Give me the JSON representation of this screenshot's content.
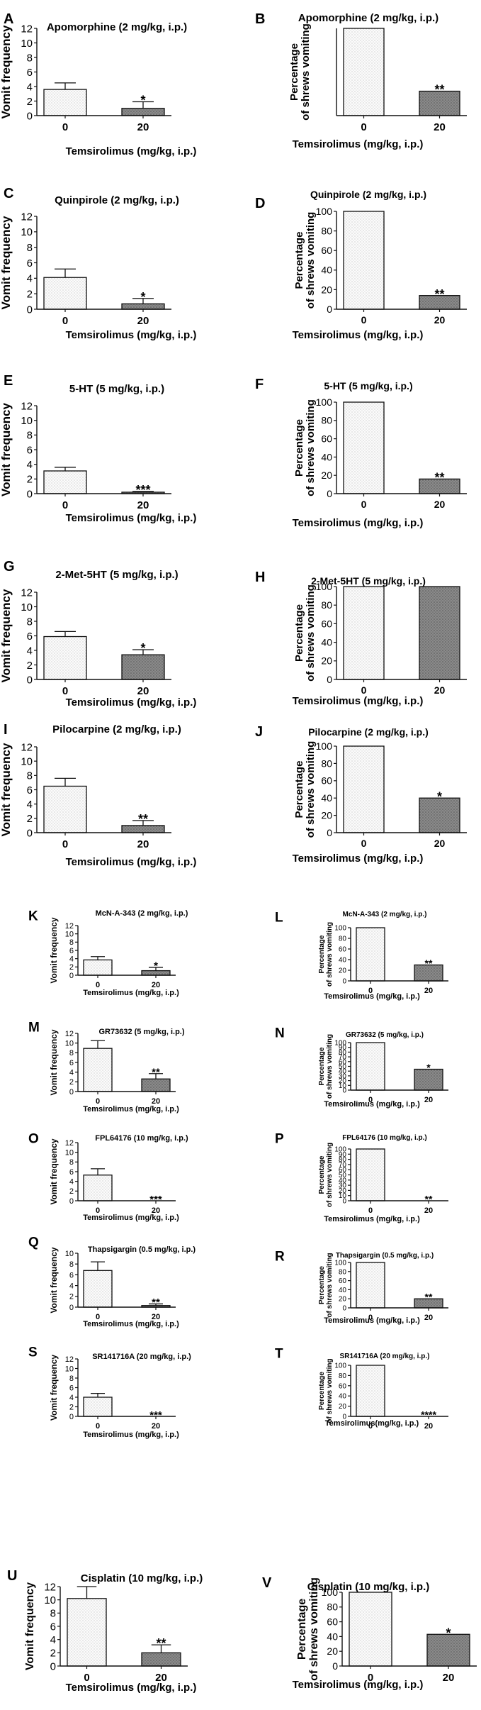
{
  "figure": {
    "xlabel": "Temsirolimus (mg/kg, i.p.)",
    "xlabel_squeezed": "Temsirolimus(mg/kg, i.p.)",
    "categories": [
      "0",
      "20"
    ],
    "ylabel_frequency": "Vomit frequency",
    "ylabel_percent_line1": "Percentage",
    "ylabel_percent_line2": "of shrews vomiting"
  },
  "chart_data": [
    {
      "panel": "A",
      "type": "bar",
      "title": "Apomorphine (2 mg/kg, i.p.)",
      "ylabel": "Vomit frequency",
      "xlabel": "Temsirolimus (mg/kg, i.p.)",
      "categories": [
        "0",
        "20"
      ],
      "values": [
        3.6,
        1.0
      ],
      "errors": [
        0.9,
        0.9
      ],
      "ylim": [
        0,
        12
      ],
      "yticks": [
        0,
        2,
        4,
        6,
        8,
        10,
        12
      ],
      "significance": [
        "",
        "*"
      ]
    },
    {
      "panel": "B",
      "type": "bar",
      "title": "Apomorphine (2 mg/kg, i.p.)",
      "ylabel": "Percentage of shrews vomiting",
      "xlabel": "Temsirolimus (mg/kg, i.p.)",
      "categories": [
        "0",
        "20"
      ],
      "values": [
        100,
        28
      ],
      "errors": [
        0,
        0
      ],
      "ylim": [
        0,
        100
      ],
      "yticks": [],
      "significance": [
        "",
        "**"
      ]
    },
    {
      "panel": "C",
      "type": "bar",
      "title": "Quinpirole (2 mg/kg, i.p.)",
      "ylabel": "Vomit frequency",
      "xlabel": "Temsirolimus (mg/kg, i.p.)",
      "categories": [
        "0",
        "20"
      ],
      "values": [
        4.1,
        0.7
      ],
      "errors": [
        1.1,
        0.7
      ],
      "ylim": [
        0,
        12
      ],
      "yticks": [
        0,
        2,
        4,
        6,
        8,
        10,
        12
      ],
      "significance": [
        "",
        "*"
      ]
    },
    {
      "panel": "D",
      "type": "bar",
      "title": "Quinpirole (2 mg/kg, i.p.)",
      "ylabel": "Percentage of shrews vomiting",
      "xlabel": "Temsirolimus (mg/kg, i.p.)",
      "categories": [
        "0",
        "20"
      ],
      "values": [
        100,
        14
      ],
      "errors": [
        0,
        0
      ],
      "ylim": [
        0,
        100
      ],
      "yticks": [
        0,
        20,
        40,
        60,
        80,
        100
      ],
      "significance": [
        "",
        "**"
      ]
    },
    {
      "panel": "E",
      "type": "bar",
      "title": "5-HT (5 mg/kg, i.p.)",
      "ylabel": "Vomit frequency",
      "xlabel": "Temsirolimus (mg/kg, i.p.)",
      "categories": [
        "0",
        "20"
      ],
      "values": [
        3.1,
        0.2
      ],
      "errors": [
        0.5,
        0.1
      ],
      "ylim": [
        0,
        12
      ],
      "yticks": [
        0,
        2,
        4,
        6,
        8,
        10,
        12
      ],
      "significance": [
        "",
        "***"
      ]
    },
    {
      "panel": "F",
      "type": "bar",
      "title": "5-HT (5 mg/kg, i.p.)",
      "ylabel": "Percentage of shrews vomiting",
      "xlabel": "Temsirolimus (mg/kg, i.p.)",
      "categories": [
        "0",
        "20"
      ],
      "values": [
        100,
        16
      ],
      "errors": [
        0,
        0
      ],
      "ylim": [
        0,
        100
      ],
      "yticks": [
        0,
        20,
        40,
        60,
        80,
        100
      ],
      "significance": [
        "",
        "**"
      ]
    },
    {
      "panel": "G",
      "type": "bar",
      "title": "2-Met-5HT (5 mg/kg, i.p.)",
      "ylabel": "Vomit frequency",
      "xlabel": "Temsirolimus (mg/kg, i.p.)",
      "categories": [
        "0",
        "20"
      ],
      "values": [
        5.9,
        3.4
      ],
      "errors": [
        0.7,
        0.7
      ],
      "ylim": [
        0,
        12
      ],
      "yticks": [
        0,
        2,
        4,
        6,
        8,
        10,
        12
      ],
      "significance": [
        "",
        "*"
      ]
    },
    {
      "panel": "H",
      "type": "bar",
      "title": "2-Met-5HT (5 mg/kg, i.p.)",
      "ylabel": "Percentage of shrews vomiting",
      "xlabel": "Temsirolimus (mg/kg, i.p.)",
      "categories": [
        "0",
        "20"
      ],
      "values": [
        100,
        100
      ],
      "errors": [
        0,
        0
      ],
      "ylim": [
        0,
        100
      ],
      "yticks": [
        0,
        20,
        40,
        60,
        80,
        100
      ],
      "significance": [
        "",
        ""
      ]
    },
    {
      "panel": "I",
      "type": "bar",
      "title": "Pilocarpine (2 mg/kg, i.p.)",
      "ylabel": "Vomit frequency",
      "xlabel": "Temsirolimus (mg/kg, i.p.)",
      "categories": [
        "0",
        "20"
      ],
      "values": [
        6.5,
        1.0
      ],
      "errors": [
        1.1,
        0.7
      ],
      "ylim": [
        0,
        12
      ],
      "yticks": [
        0,
        2,
        4,
        6,
        8,
        10,
        12
      ],
      "significance": [
        "",
        "**"
      ]
    },
    {
      "panel": "J",
      "type": "bar",
      "title": "Pilocarpine (2 mg/kg, i.p.)",
      "ylabel": "Percentage of shrews vomiting",
      "xlabel": "Temsirolimus (mg/kg, i.p.)",
      "categories": [
        "0",
        "20"
      ],
      "values": [
        100,
        40
      ],
      "errors": [
        0,
        0
      ],
      "ylim": [
        0,
        100
      ],
      "yticks": [
        0,
        20,
        40,
        60,
        80,
        100
      ],
      "significance": [
        "",
        "*"
      ]
    },
    {
      "panel": "K",
      "type": "bar",
      "title": "McN-A-343 (2 mg/kg, i.p.)",
      "ylabel": "Vomit frequency",
      "xlabel": "Temsirolimus (mg/kg, i.p.)",
      "categories": [
        "0",
        "20"
      ],
      "values": [
        3.7,
        1.1
      ],
      "errors": [
        0.8,
        0.8
      ],
      "ylim": [
        0,
        12
      ],
      "yticks": [
        0,
        2,
        4,
        6,
        8,
        10,
        12
      ],
      "significance": [
        "",
        "*"
      ]
    },
    {
      "panel": "L",
      "type": "bar",
      "title": "McN-A-343 (2 mg/kg, i.p.)",
      "ylabel": "Percentage of shrews vomiting",
      "xlabel": "Temsirolimus (mg/kg, i.p.)",
      "categories": [
        "0",
        "20"
      ],
      "values": [
        100,
        30
      ],
      "errors": [
        0,
        0
      ],
      "ylim": [
        0,
        100
      ],
      "yticks": [
        0,
        20,
        40,
        60,
        80,
        100
      ],
      "significance": [
        "",
        "**"
      ]
    },
    {
      "panel": "M",
      "type": "bar",
      "title": "GR73632 (5 mg/kg, i.p.)",
      "ylabel": "Vomit frequency",
      "xlabel": "Temsirolimus (mg/kg, i.p.)",
      "categories": [
        "0",
        "20"
      ],
      "values": [
        8.9,
        2.6
      ],
      "errors": [
        1.6,
        1.1
      ],
      "ylim": [
        0,
        12
      ],
      "yticks": [
        0,
        2,
        4,
        6,
        8,
        10,
        12
      ],
      "significance": [
        "",
        "**"
      ]
    },
    {
      "panel": "N",
      "type": "bar",
      "title": "GR73632 (5 mg/kg, i.p.)",
      "ylabel": "Percentage of shrews vomiting",
      "xlabel": "Temsirolimus (mg/kg, i.p.)",
      "categories": [
        "0",
        "20"
      ],
      "values": [
        100,
        44
      ],
      "errors": [
        0,
        0
      ],
      "ylim": [
        0,
        100
      ],
      "yticks": [
        0,
        10,
        20,
        30,
        40,
        50,
        60,
        70,
        80,
        90,
        100
      ],
      "significance": [
        "",
        "*"
      ]
    },
    {
      "panel": "O",
      "type": "bar",
      "title": "FPL64176 (10 mg/kg, i.p.)",
      "ylabel": "Vomit frequency",
      "xlabel": "Temsirolimus (mg/kg, i.p.)",
      "categories": [
        "0",
        "20"
      ],
      "values": [
        5.3,
        0
      ],
      "errors": [
        1.3,
        0
      ],
      "ylim": [
        0,
        12
      ],
      "yticks": [
        0,
        2,
        4,
        6,
        8,
        10,
        12
      ],
      "significance": [
        "",
        "***"
      ]
    },
    {
      "panel": "P",
      "type": "bar",
      "title": "FPL64176 (10 mg/kg, i.p.)",
      "ylabel": "Percentage of shrews vomiting",
      "xlabel": "Temsirolimus (mg/kg, i.p.)",
      "categories": [
        "0",
        "20"
      ],
      "values": [
        100,
        0
      ],
      "errors": [
        0,
        0
      ],
      "ylim": [
        0,
        100
      ],
      "yticks": [
        0,
        10,
        20,
        30,
        40,
        50,
        60,
        70,
        80,
        90,
        100
      ],
      "significance": [
        "",
        "**"
      ]
    },
    {
      "panel": "Q",
      "type": "bar",
      "title": "Thapsigargin (0.5 mg/kg, i.p.)",
      "ylabel": "Vomit frequency",
      "xlabel": "Temsirolimus (mg/kg, i.p.)",
      "categories": [
        "0",
        "20"
      ],
      "values": [
        6.8,
        0.3
      ],
      "errors": [
        1.6,
        0.3
      ],
      "ylim": [
        0,
        10
      ],
      "yticks": [
        0,
        2,
        4,
        6,
        8,
        10
      ],
      "significance": [
        "",
        "**"
      ]
    },
    {
      "panel": "R",
      "type": "bar",
      "title": "Thapsigargin (0.5 mg/kg, i.p.)",
      "ylabel": "Percentage of shrews vomiting",
      "xlabel": "Temsirolimus (mg/kg, i.p.)",
      "categories": [
        "0",
        "20"
      ],
      "values": [
        100,
        20
      ],
      "errors": [
        0,
        0
      ],
      "ylim": [
        0,
        100
      ],
      "yticks": [
        0,
        20,
        40,
        60,
        80,
        100
      ],
      "significance": [
        "",
        "**"
      ]
    },
    {
      "panel": "S",
      "type": "bar",
      "title": "SR141716A (20 mg/kg, i.p.)",
      "ylabel": "Vomit frequency",
      "xlabel": "Temsirolimus (mg/kg, i.p.)",
      "categories": [
        "0",
        "20"
      ],
      "values": [
        4.0,
        0
      ],
      "errors": [
        0.8,
        0
      ],
      "ylim": [
        0,
        12
      ],
      "yticks": [
        0,
        2,
        4,
        6,
        8,
        10,
        12
      ],
      "significance": [
        "",
        "***"
      ]
    },
    {
      "panel": "T",
      "type": "bar",
      "title": "SR141716A (20 mg/kg, i.p.)",
      "ylabel": "Percentage of shrews vomiting",
      "xlabel": "Temsirolimus(mg/kg, i.p.)",
      "categories": [
        "0",
        "20"
      ],
      "values": [
        100,
        0
      ],
      "errors": [
        0,
        0
      ],
      "ylim": [
        0,
        100
      ],
      "yticks": [
        0,
        20,
        40,
        60,
        80,
        100
      ],
      "significance": [
        "",
        "****"
      ]
    },
    {
      "panel": "U",
      "type": "bar",
      "title": "Cisplatin (10 mg/kg, i.p.)",
      "ylabel": "Vomit frequency",
      "xlabel": "Temsirolimus (mg/kg, i.p.)",
      "categories": [
        "0",
        "20"
      ],
      "values": [
        10.2,
        2.0
      ],
      "errors": [
        1.8,
        1.2
      ],
      "ylim": [
        0,
        12
      ],
      "yticks": [
        0,
        2,
        4,
        6,
        8,
        10,
        12
      ],
      "significance": [
        "",
        "**"
      ]
    },
    {
      "panel": "V",
      "type": "bar",
      "title": "Cisplatin (10 mg/kg, i.p.)",
      "ylabel": "Percentage of shrews vomiting",
      "xlabel": "Temsirolimus (mg/kg, i.p.)",
      "categories": [
        "0",
        "20"
      ],
      "values": [
        100,
        43
      ],
      "errors": [
        0,
        0
      ],
      "ylim": [
        0,
        100
      ],
      "yticks": [
        0,
        20,
        40,
        60,
        80,
        100
      ],
      "significance": [
        "",
        "*"
      ]
    }
  ]
}
